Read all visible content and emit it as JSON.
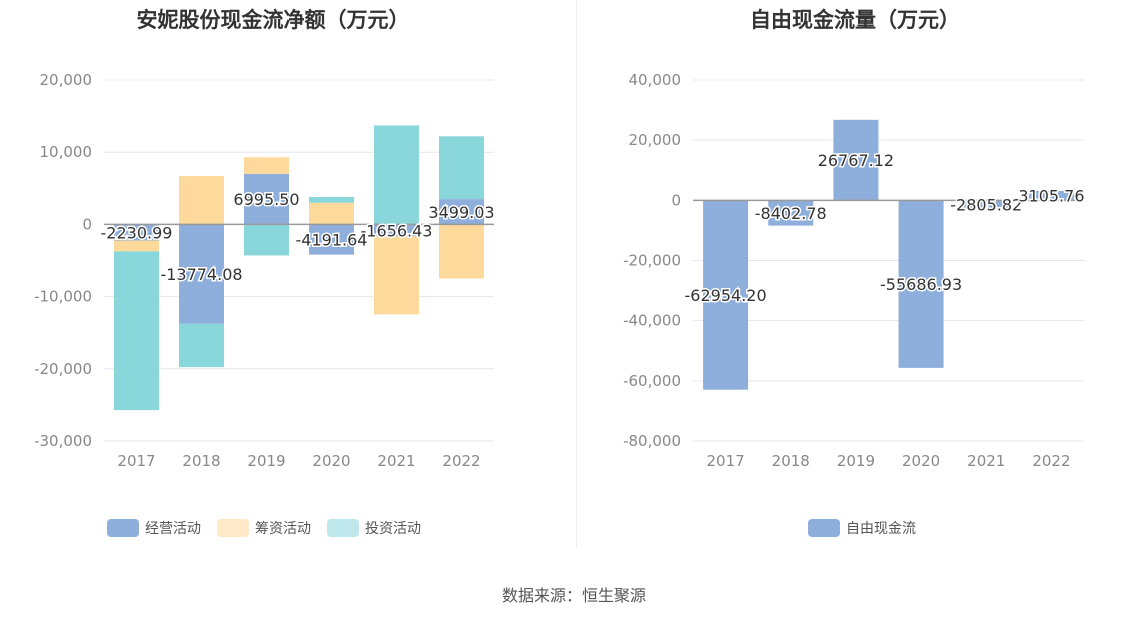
{
  "chart_data": [
    {
      "type": "bar",
      "stacked": true,
      "title": "安妮股份现金流净额（万元）",
      "categories": [
        "2017",
        "2018",
        "2019",
        "2020",
        "2021",
        "2022"
      ],
      "ylim": [
        -30000,
        20000
      ],
      "yticks": [
        20000,
        10000,
        0,
        -10000,
        -20000,
        -30000
      ],
      "ytick_labels": [
        "20,000",
        "10,000",
        "0",
        "-10,000",
        "-20,000",
        "-30,000"
      ],
      "grid": true,
      "legend": "bottom",
      "series": [
        {
          "name": "经营活动",
          "color": "#8eaedb",
          "values": [
            -2230.99,
            -13774.08,
            6995.5,
            -4191.64,
            -1656.43,
            3499.03
          ],
          "labels": [
            "-2230.99",
            "-13774.08",
            "6995.50",
            "-4191.64",
            "-1656.43",
            "3499.03"
          ]
        },
        {
          "name": "筹资活动",
          "color": "#fdd99c",
          "values": [
            -1500,
            6700,
            2300,
            3000,
            -10800,
            -7500
          ]
        },
        {
          "name": "投资活动",
          "color": "#89d6db",
          "values": [
            -22000,
            -6000,
            -4300,
            800,
            13700,
            8700
          ]
        }
      ]
    },
    {
      "type": "bar",
      "title": "自由现金流量（万元）",
      "categories": [
        "2017",
        "2018",
        "2019",
        "2020",
        "2021",
        "2022"
      ],
      "ylim": [
        -80000,
        40000
      ],
      "yticks": [
        40000,
        20000,
        0,
        -20000,
        -40000,
        -60000,
        -80000
      ],
      "ytick_labels": [
        "40,000",
        "20,000",
        "0",
        "-20,000",
        "-40,000",
        "-60,000",
        "-80,000"
      ],
      "grid": true,
      "legend": "bottom",
      "series": [
        {
          "name": "自由现金流",
          "color": "#8eaedb",
          "values": [
            -62954.2,
            -8402.78,
            26767.12,
            -55686.93,
            -2805.82,
            3105.76
          ],
          "labels": [
            "-62954.20",
            "-8402.78",
            "26767.12",
            "-55686.93",
            "-2805.82",
            "3105.76"
          ]
        }
      ]
    }
  ],
  "source": "数据来源：恒生聚源"
}
